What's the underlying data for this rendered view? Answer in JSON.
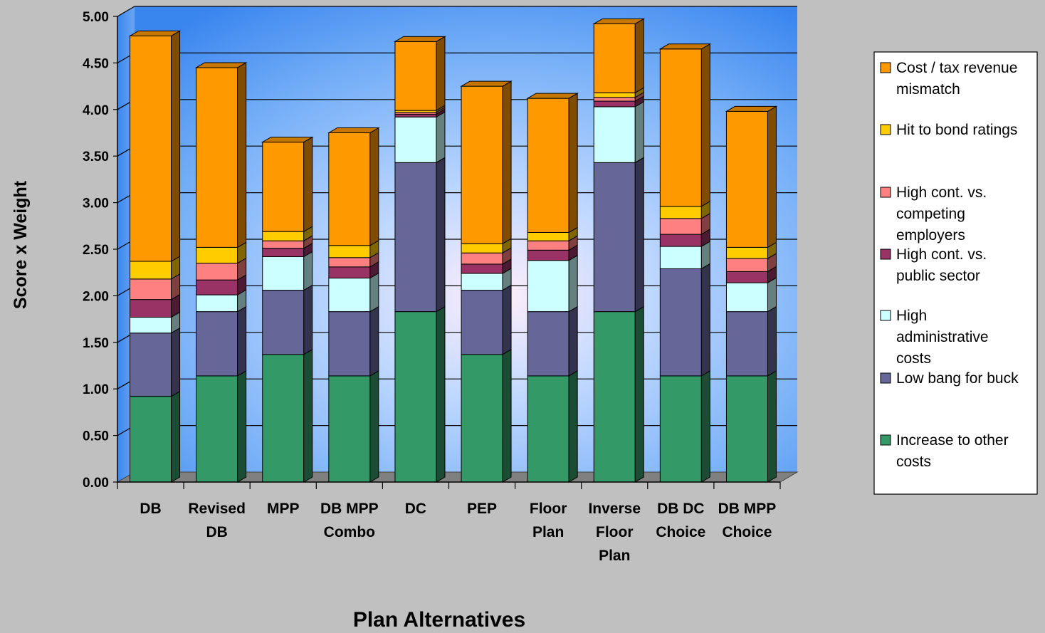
{
  "chart_data": {
    "type": "bar",
    "stacked": true,
    "three_d": true,
    "title": "",
    "xlabel": "Plan Alternatives",
    "ylabel": "Score x Weight",
    "ylim": [
      0,
      5
    ],
    "yticks": [
      "0.00",
      "0.50",
      "1.00",
      "1.50",
      "2.00",
      "2.50",
      "3.00",
      "3.50",
      "4.00",
      "4.50",
      "5.00"
    ],
    "grid": true,
    "legend_position": "right",
    "categories": [
      [
        "DB"
      ],
      [
        "Revised",
        "DB"
      ],
      [
        "MPP"
      ],
      [
        "DB MPP",
        "Combo"
      ],
      [
        "DC"
      ],
      [
        "PEP"
      ],
      [
        "Floor",
        "Plan"
      ],
      [
        "Inverse",
        "Floor",
        "Plan"
      ],
      [
        "DB DC",
        "Choice"
      ],
      [
        "DB MPP",
        "Choice"
      ]
    ],
    "series": [
      {
        "name": "Increase to other costs",
        "color": "#339966",
        "values": [
          0.92,
          1.14,
          1.37,
          1.14,
          1.83,
          1.37,
          1.14,
          1.83,
          1.14,
          1.14
        ]
      },
      {
        "name": "Low bang for buck",
        "color": "#666699",
        "values": [
          0.68,
          0.69,
          0.69,
          0.69,
          1.6,
          0.69,
          0.69,
          1.6,
          1.15,
          0.69
        ]
      },
      {
        "name": "High administrative costs",
        "color": "#ccffff",
        "values": [
          0.17,
          0.18,
          0.36,
          0.36,
          0.49,
          0.18,
          0.55,
          0.6,
          0.24,
          0.31
        ]
      },
      {
        "name": "High cont. vs. public sector",
        "color": "#993366",
        "values": [
          0.19,
          0.16,
          0.09,
          0.12,
          0.03,
          0.1,
          0.11,
          0.06,
          0.13,
          0.12
        ]
      },
      {
        "name": "High cont. vs. competing employers",
        "color": "#ff8080",
        "values": [
          0.22,
          0.18,
          0.08,
          0.1,
          0.02,
          0.12,
          0.1,
          0.04,
          0.17,
          0.14
        ]
      },
      {
        "name": "Hit to bond ratings",
        "color": "#ffcc00",
        "values": [
          0.19,
          0.17,
          0.1,
          0.13,
          0.02,
          0.1,
          0.09,
          0.05,
          0.13,
          0.12
        ]
      },
      {
        "name": "Cost / tax revenue mismatch",
        "color": "#ff9900",
        "values": [
          2.42,
          1.93,
          0.96,
          1.21,
          0.74,
          1.69,
          1.44,
          0.74,
          1.69,
          1.46
        ]
      }
    ],
    "legend": [
      {
        "lines": [
          "Cost / tax revenue",
          "mismatch"
        ],
        "color": "#ff9900"
      },
      {
        "lines": [
          "Hit to bond ratings"
        ],
        "color": "#ffcc00"
      },
      {
        "lines": [
          "High cont. vs.",
          "competing",
          "employers"
        ],
        "color": "#ff8080"
      },
      {
        "lines": [
          "High cont. vs.",
          "public sector"
        ],
        "color": "#993366"
      },
      {
        "lines": [
          "High",
          "administrative",
          "costs"
        ],
        "color": "#ccffff"
      },
      {
        "lines": [
          "Low bang for buck"
        ],
        "color": "#666699"
      },
      {
        "lines": [
          "Increase to other",
          "costs"
        ],
        "color": "#339966"
      }
    ]
  }
}
